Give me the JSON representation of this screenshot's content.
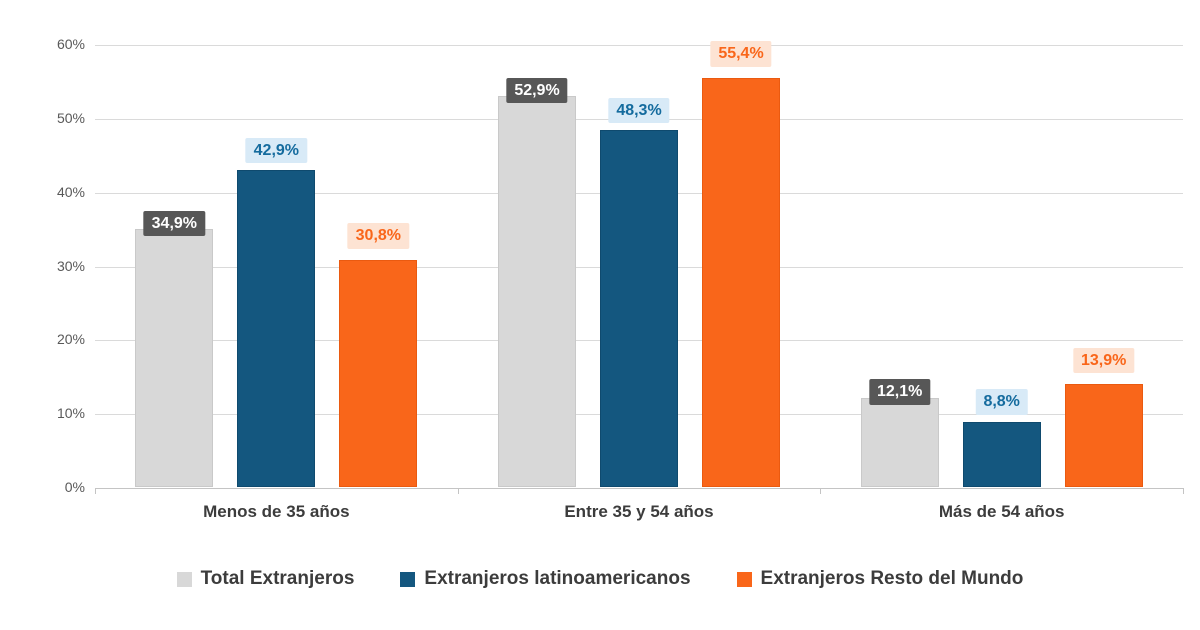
{
  "chart_data": {
    "type": "bar",
    "categories": [
      "Menos de 35 años",
      "Entre 35 y 54 años",
      "Más de 54 años"
    ],
    "series": [
      {
        "name": "Total Extranjeros",
        "values": [
          34.9,
          52.9,
          12.1
        ],
        "labels": [
          "34,9%",
          "52,9%",
          "12,1%"
        ],
        "color": "#d8d8d8",
        "label_bg": "#575757",
        "label_fg": "#ffffff"
      },
      {
        "name": "Extranjeros latinoamericanos",
        "values": [
          42.9,
          48.3,
          8.8
        ],
        "labels": [
          "42,9%",
          "48,3%",
          "8,8%"
        ],
        "color": "#14577f",
        "label_bg": "#d8eaf7",
        "label_fg": "#146b9e"
      },
      {
        "name": "Extranjeros Resto del Mundo",
        "values": [
          30.8,
          55.4,
          13.9
        ],
        "labels": [
          "30,8%",
          "55,4%",
          "13,9%"
        ],
        "color": "#f9661a",
        "label_bg": "#fde3d3",
        "label_fg": "#f9661a"
      }
    ],
    "title": "",
    "xlabel": "",
    "ylabel": "",
    "ylim": [
      0,
      60
    ],
    "ytick_step": 10,
    "ytick_labels": [
      "0%",
      "10%",
      "20%",
      "30%",
      "40%",
      "50%",
      "60%"
    ],
    "grid": true,
    "legend_position": "bottom"
  }
}
